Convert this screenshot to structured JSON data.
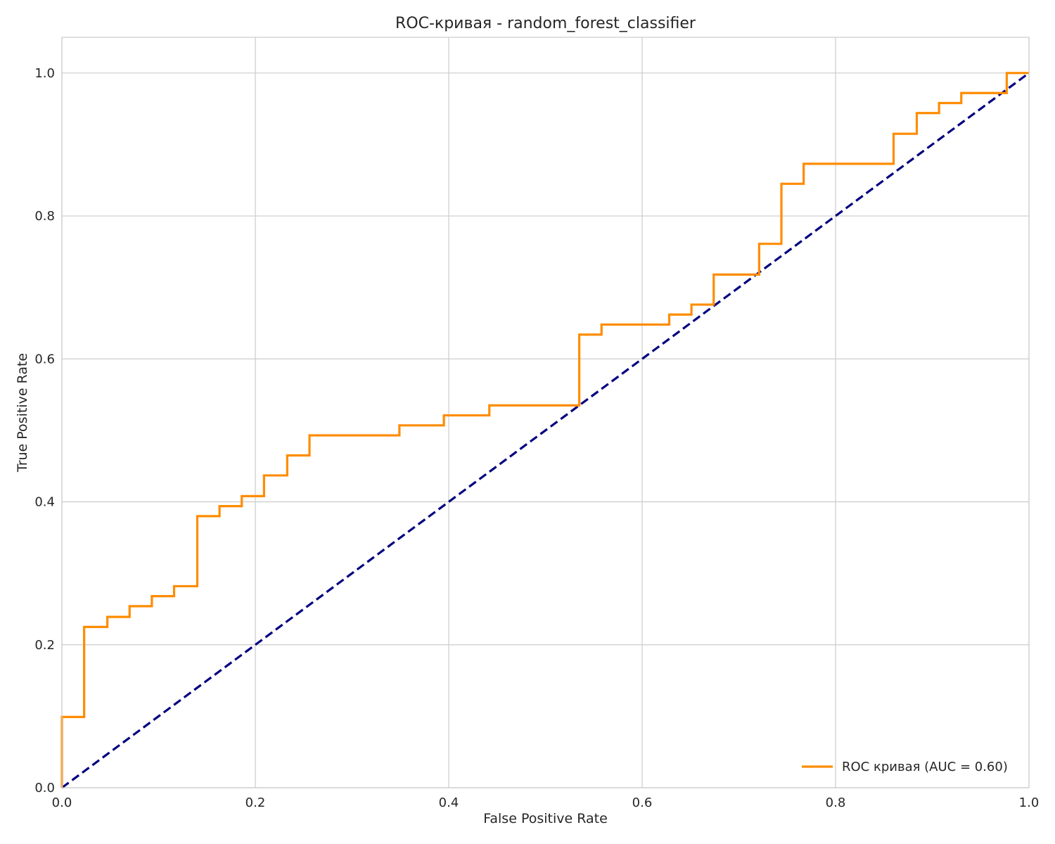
{
  "chart_data": {
    "type": "line",
    "title": "ROC-кривая - random_forest_classifier",
    "xlabel": "False Positive Rate",
    "ylabel": "True Positive Rate",
    "xlim": [
      0.0,
      1.0
    ],
    "ylim": [
      0.0,
      1.05
    ],
    "xticks": [
      0.0,
      0.2,
      0.4,
      0.6,
      0.8,
      1.0
    ],
    "xtick_labels": [
      "0.0",
      "0.2",
      "0.4",
      "0.6",
      "0.8",
      "1.0"
    ],
    "yticks": [
      0.0,
      0.2,
      0.4,
      0.6,
      0.8,
      1.0
    ],
    "ytick_labels": [
      "0.0",
      "0.2",
      "0.4",
      "0.6",
      "0.8",
      "1.0"
    ],
    "grid": true,
    "legend_position": "lower-right",
    "series": [
      {
        "name": "ROC кривая (AUC = 0.60)",
        "color": "#ff8c00",
        "style": "solid",
        "x": [
          0.0,
          0.0,
          0.023,
          0.023,
          0.047,
          0.047,
          0.07,
          0.07,
          0.093,
          0.093,
          0.116,
          0.116,
          0.14,
          0.14,
          0.163,
          0.163,
          0.186,
          0.186,
          0.209,
          0.209,
          0.233,
          0.233,
          0.256,
          0.256,
          0.349,
          0.349,
          0.395,
          0.395,
          0.442,
          0.442,
          0.535,
          0.535,
          0.558,
          0.558,
          0.628,
          0.628,
          0.651,
          0.651,
          0.674,
          0.674,
          0.721,
          0.721,
          0.744,
          0.744,
          0.767,
          0.767,
          0.86,
          0.86,
          0.884,
          0.884,
          0.907,
          0.907,
          0.93,
          0.93,
          0.977,
          0.977,
          1.0
        ],
        "y": [
          0.0,
          0.099,
          0.099,
          0.225,
          0.225,
          0.239,
          0.239,
          0.254,
          0.254,
          0.268,
          0.268,
          0.282,
          0.282,
          0.38,
          0.38,
          0.394,
          0.394,
          0.408,
          0.408,
          0.437,
          0.437,
          0.465,
          0.465,
          0.493,
          0.493,
          0.507,
          0.507,
          0.521,
          0.521,
          0.535,
          0.535,
          0.634,
          0.634,
          0.648,
          0.648,
          0.662,
          0.662,
          0.676,
          0.676,
          0.718,
          0.718,
          0.761,
          0.761,
          0.845,
          0.845,
          0.873,
          0.873,
          0.915,
          0.915,
          0.944,
          0.944,
          0.958,
          0.958,
          0.972,
          0.972,
          1.0,
          1.0
        ]
      },
      {
        "name": "",
        "color": "#000080",
        "style": "dashed",
        "x": [
          0.0,
          1.0
        ],
        "y": [
          0.0,
          1.0
        ]
      }
    ]
  }
}
